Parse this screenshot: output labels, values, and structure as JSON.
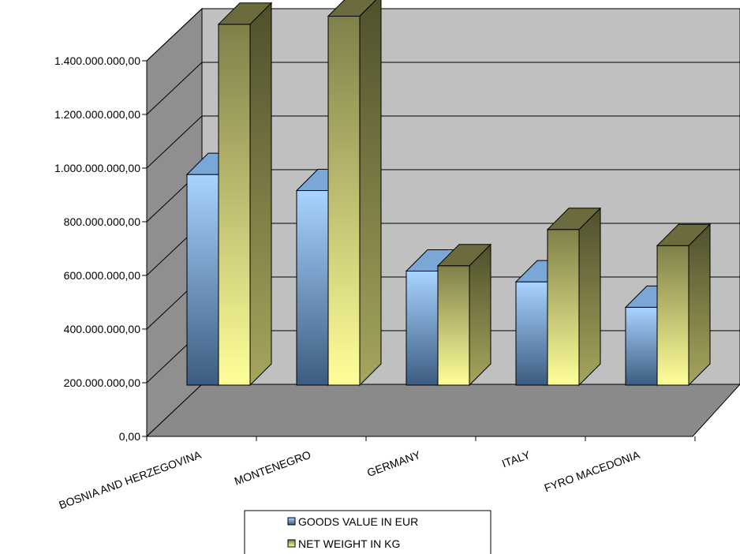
{
  "chart_data": {
    "type": "bar",
    "style": "3d-clustered-column",
    "categories": [
      "BOSNIA AND HERZEGOVINA",
      "MONTENEGRO",
      "GERMANY",
      "ITALY",
      "FYRO MACEDONIA"
    ],
    "series": [
      {
        "name": "GOODS VALUE IN EUR",
        "values": [
          785000000,
          725000000,
          425000000,
          385000000,
          290000000
        ]
      },
      {
        "name": "NET WEIGHT IN KG",
        "values": [
          1345000000,
          1375000000,
          445000000,
          580000000,
          520000000
        ]
      }
    ],
    "ylim": [
      0,
      1400000000
    ],
    "yticks": [
      "0,00",
      "200.000.000,00",
      "400.000.000,00",
      "600.000.000,00",
      "800.000.000,00",
      "1.000.000.000,00",
      "1.200.000.000,00",
      "1.400.000.000,00"
    ],
    "grid": true,
    "legend_position": "bottom",
    "colors": {
      "walls": "#c0c0c0",
      "left_wall": "#8f8f8f",
      "floor": "#8a8a8a",
      "series1_top": "#a8d4ff",
      "series1_bottom": "#3c5c80",
      "series2_top": "#7f7f4a",
      "series2_bottom": "#ffff99"
    }
  }
}
